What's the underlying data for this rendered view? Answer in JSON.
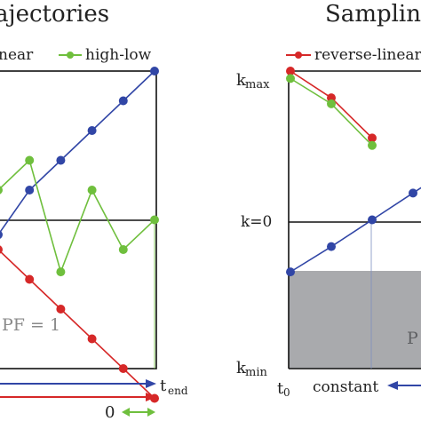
{
  "chart_data": [
    {
      "type": "line",
      "title": "ajectories",
      "legend": [
        {
          "label": "near",
          "color": "#3146a6"
        },
        {
          "label": "high-low",
          "color": "#6fbf3d"
        }
      ],
      "annotation": "PF = 1",
      "x_end_label": "end",
      "bottom_marker": "0",
      "series": [
        {
          "name": "near",
          "color": "#3146a6",
          "x": [
            0,
            1,
            2,
            3,
            4,
            5
          ],
          "y": [
            -0.1,
            0.2,
            0.4,
            0.6,
            0.8,
            1.0
          ]
        },
        {
          "name": "high-low",
          "color": "#6fbf3d",
          "x": [
            0,
            1,
            2,
            3,
            4,
            5
          ],
          "y": [
            0.2,
            0.4,
            -0.35,
            0.2,
            -0.2,
            0.0
          ]
        },
        {
          "name": "",
          "color": "#d62828",
          "x": [
            0,
            1,
            2,
            3,
            4,
            5
          ],
          "y": [
            -0.2,
            -0.4,
            -0.6,
            -0.8,
            -1.0,
            -1.2
          ]
        }
      ],
      "ylim": [
        -1.0,
        1.0
      ]
    },
    {
      "type": "line",
      "title": "Samplin",
      "legend": [
        {
          "label": "reverse-linear",
          "color": "#d62828"
        }
      ],
      "y_tick_labels": {
        "top": "k",
        "top_sub": "max",
        "zero": "k=0",
        "bottom": "k",
        "bottom_sub": "min"
      },
      "x_tick_labels": {
        "start": "t",
        "start_sub": "0",
        "axis_label": "constant"
      },
      "shaded_region": {
        "label": "P",
        "color": "#a9aaad"
      },
      "series": [
        {
          "name": "reverse-linear",
          "color": "#d62828",
          "x": [
            0,
            1,
            2
          ],
          "y": [
            1.0,
            0.82,
            0.55
          ]
        },
        {
          "name": "",
          "color": "#6fbf3d",
          "x": [
            0,
            1,
            2
          ],
          "y": [
            0.95,
            0.78,
            0.5
          ]
        },
        {
          "name": "",
          "color": "#3146a6",
          "x": [
            0,
            1,
            2,
            3,
            4
          ],
          "y": [
            -0.35,
            -0.18,
            0.0,
            0.18,
            0.36
          ]
        }
      ],
      "ylim": [
        -1.0,
        1.0
      ]
    }
  ]
}
